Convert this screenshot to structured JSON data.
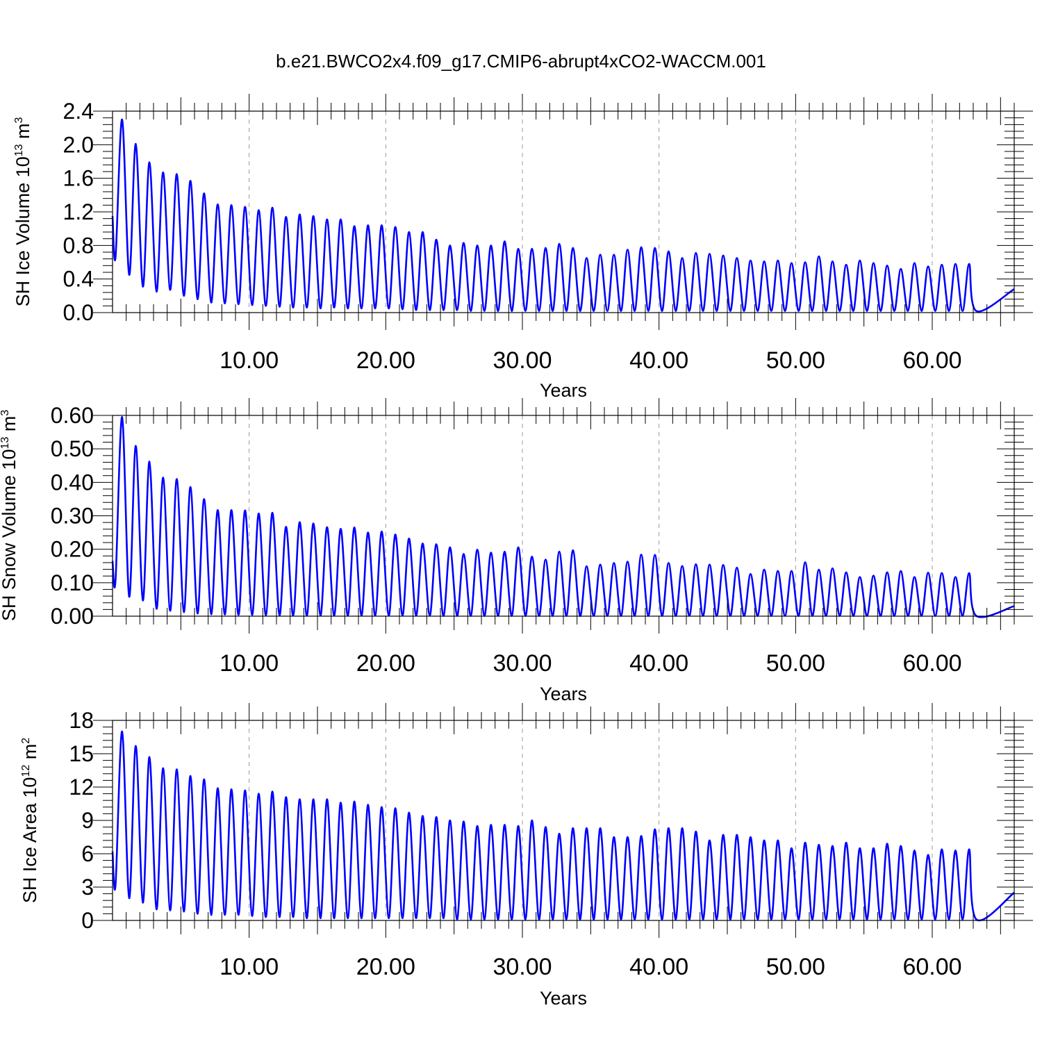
{
  "title": "b.e21.BWCO2x4.f09_g17.CMIP6-abrupt4xCO2-WACCM.001",
  "colors": {
    "line": "#0000ff",
    "grid": "#999999",
    "axis": "#000000"
  },
  "chart_data": [
    {
      "type": "line",
      "ylabel": "SH Ice Volume 10",
      "ylabel_exp": "13",
      "ylabel_unit": " m",
      "ylabel_unit_exp": "3",
      "xlabel": "Years",
      "xlim": [
        0,
        66
      ],
      "ylim": [
        0.0,
        2.4
      ],
      "yticks": [
        0.0,
        0.4,
        0.8,
        1.2,
        1.6,
        2.0,
        2.4
      ],
      "ytick_labels": [
        "0.0",
        "0.4",
        "0.8",
        "1.2",
        "1.6",
        "2.0",
        "2.4"
      ],
      "xticks": [
        10,
        20,
        30,
        40,
        50,
        60
      ],
      "xtick_labels": [
        "10.00",
        "20.00",
        "30.00",
        "40.00",
        "50.00",
        "60.00"
      ],
      "grid": "vertical dashed",
      "start": 1.15,
      "end": 0.28,
      "peaks": [
        2.3,
        2.01,
        1.79,
        1.67,
        1.65,
        1.57,
        1.42,
        1.29,
        1.28,
        1.26,
        1.22,
        1.25,
        1.14,
        1.17,
        1.15,
        1.11,
        1.11,
        1.03,
        1.04,
        1.04,
        1.02,
        0.96,
        0.96,
        0.87,
        0.8,
        0.83,
        0.8,
        0.8,
        0.85,
        0.76,
        0.76,
        0.77,
        0.82,
        0.77,
        0.65,
        0.69,
        0.69,
        0.75,
        0.78,
        0.77,
        0.73,
        0.65,
        0.71,
        0.7,
        0.68,
        0.65,
        0.62,
        0.61,
        0.62,
        0.59,
        0.6,
        0.67,
        0.61,
        0.57,
        0.62,
        0.59,
        0.56,
        0.52,
        0.59,
        0.55,
        0.57,
        0.58,
        0.58
      ],
      "troughs": [
        0.66,
        0.45,
        0.31,
        0.25,
        0.27,
        0.2,
        0.16,
        0.12,
        0.11,
        0.1,
        0.09,
        0.08,
        0.07,
        0.06,
        0.06,
        0.05,
        0.06,
        0.05,
        0.05,
        0.05,
        0.05,
        0.04,
        0.03,
        0.03,
        0.03,
        0.03,
        0.02,
        0.02,
        0.02,
        0.02,
        0.02,
        0.02,
        0.02,
        0.02,
        0.02,
        0.02,
        0.02,
        0.02,
        0.02,
        0.02,
        0.02,
        0.02,
        0.02,
        0.02,
        0.02,
        0.02,
        0.02,
        0.02,
        0.02,
        0.02,
        0.02,
        0.02,
        0.02,
        0.02,
        0.02,
        0.02,
        0.02,
        0.02,
        0.02,
        0.02,
        0.02,
        0.02,
        0.02,
        0.02
      ]
    },
    {
      "type": "line",
      "ylabel": "SH Snow Volume 10",
      "ylabel_exp": "13",
      "ylabel_unit": " m",
      "ylabel_unit_exp": "3",
      "xlabel": "Years",
      "xlim": [
        0,
        66
      ],
      "ylim": [
        0.0,
        0.6
      ],
      "yticks": [
        0.0,
        0.1,
        0.2,
        0.3,
        0.4,
        0.5,
        0.6
      ],
      "ytick_labels": [
        "0.00",
        "0.10",
        "0.20",
        "0.30",
        "0.40",
        "0.50",
        "0.60"
      ],
      "xticks": [
        10,
        20,
        30,
        40,
        50,
        60
      ],
      "xtick_labels": [
        "10.00",
        "20.00",
        "30.00",
        "40.00",
        "50.00",
        "60.00"
      ],
      "grid": "vertical dashed",
      "start": 0.165,
      "end": 0.03,
      "peaks": [
        0.595,
        0.509,
        0.462,
        0.414,
        0.41,
        0.386,
        0.35,
        0.317,
        0.317,
        0.316,
        0.307,
        0.309,
        0.267,
        0.281,
        0.277,
        0.266,
        0.261,
        0.265,
        0.25,
        0.253,
        0.244,
        0.232,
        0.217,
        0.215,
        0.206,
        0.186,
        0.199,
        0.19,
        0.193,
        0.206,
        0.178,
        0.169,
        0.193,
        0.197,
        0.149,
        0.154,
        0.159,
        0.163,
        0.184,
        0.183,
        0.159,
        0.15,
        0.155,
        0.154,
        0.153,
        0.145,
        0.126,
        0.139,
        0.135,
        0.135,
        0.161,
        0.139,
        0.143,
        0.131,
        0.117,
        0.121,
        0.131,
        0.135,
        0.117,
        0.13,
        0.129,
        0.117,
        0.129
      ],
      "troughs": [
        0.108,
        0.058,
        0.047,
        0.022,
        0.016,
        0.012,
        0.008,
        0.006,
        0.005,
        0.004,
        0.004,
        0.003,
        0.003,
        0.002,
        0.002,
        0.002,
        0.002,
        0.002,
        0.002,
        0.002,
        0.002,
        0.002,
        0.002,
        0.002,
        0.001,
        0.001,
        0.001,
        0.001,
        0.001,
        0.001,
        0.001,
        0.001,
        0.001,
        0.001,
        0.001,
        0.001,
        0.001,
        0.001,
        0.001,
        0.001,
        0.001,
        0.001,
        0.001,
        0.001,
        0.001,
        0.001,
        0.001,
        0.001,
        0.001,
        0.001,
        0.001,
        0.001,
        0.001,
        0.001,
        0.001,
        0.001,
        0.001,
        0.001,
        0.001,
        0.001,
        0.001,
        0.001,
        0.001,
        0.001
      ]
    },
    {
      "type": "line",
      "ylabel": "SH Ice Area 10",
      "ylabel_exp": "12",
      "ylabel_unit": " m",
      "ylabel_unit_exp": "2",
      "xlabel": "Years",
      "xlim": [
        0,
        66
      ],
      "ylim": [
        0,
        18
      ],
      "yticks": [
        0,
        3,
        6,
        9,
        12,
        15,
        18
      ],
      "ytick_labels": [
        "0",
        "3",
        "6",
        "9",
        "12",
        "15",
        "18"
      ],
      "xticks": [
        10,
        20,
        30,
        40,
        50,
        60
      ],
      "xtick_labels": [
        "10.00",
        "20.00",
        "30.00",
        "40.00",
        "50.00",
        "60.00"
      ],
      "grid": "vertical dashed",
      "start": 6.2,
      "end": 2.5,
      "peaks": [
        17.0,
        15.7,
        14.7,
        13.7,
        13.6,
        13.0,
        12.7,
        11.9,
        11.8,
        11.7,
        11.4,
        11.6,
        11.1,
        10.9,
        10.9,
        10.9,
        10.6,
        10.7,
        10.4,
        10.2,
        10.1,
        9.7,
        9.4,
        9.3,
        9.0,
        8.9,
        8.5,
        8.6,
        8.6,
        8.5,
        9.0,
        8.4,
        7.8,
        8.3,
        8.3,
        8.3,
        7.5,
        7.5,
        7.6,
        8.2,
        8.3,
        8.3,
        8.0,
        7.2,
        7.7,
        7.7,
        7.5,
        7.2,
        7.2,
        6.5,
        7.0,
        6.8,
        6.7,
        7.0,
        6.5,
        6.5,
        6.9,
        6.7,
        6.3,
        5.9,
        6.4,
        6.3,
        6.4
      ],
      "troughs": [
        3.2,
        2.0,
        1.6,
        1.0,
        0.9,
        0.8,
        0.6,
        0.5,
        0.5,
        0.5,
        0.4,
        0.3,
        0.3,
        0.3,
        0.2,
        0.2,
        0.2,
        0.2,
        0.2,
        0.2,
        0.2,
        0.2,
        0.2,
        0.2,
        0.2,
        0.1,
        0.1,
        0.1,
        0.1,
        0.1,
        0.1,
        0.1,
        0.1,
        0.1,
        0.1,
        0.1,
        0.1,
        0.1,
        0.1,
        0.1,
        0.1,
        0.1,
        0.1,
        0.1,
        0.1,
        0.1,
        0.1,
        0.1,
        0.1,
        0.1,
        0.1,
        0.1,
        0.1,
        0.1,
        0.1,
        0.1,
        0.1,
        0.1,
        0.1,
        0.1,
        0.1,
        0.1,
        0.1,
        0.1
      ]
    }
  ]
}
